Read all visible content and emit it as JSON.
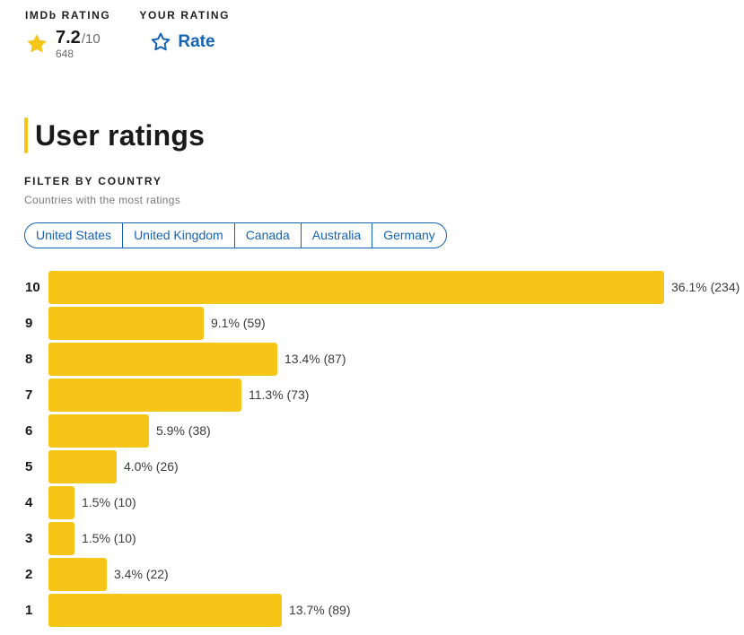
{
  "imdb_rating": {
    "label": "IMDb RATING",
    "score": "7.2",
    "max": "/10",
    "votes": "648",
    "icon": "star-filled-icon"
  },
  "your_rating": {
    "label": "YOUR RATING",
    "rate_label": "Rate",
    "icon": "star-outline-icon"
  },
  "section": {
    "title": "User ratings"
  },
  "filter": {
    "label": "FILTER BY COUNTRY",
    "subtitle": "Countries with the most ratings",
    "countries": [
      "United States",
      "United Kingdom",
      "Canada",
      "Australia",
      "Germany"
    ]
  },
  "colors": {
    "accent": "#f5c518",
    "link": "#1463b4"
  },
  "chart_data": {
    "type": "bar",
    "orientation": "horizontal",
    "categories": [
      "10",
      "9",
      "8",
      "7",
      "6",
      "5",
      "4",
      "3",
      "2",
      "1"
    ],
    "values": [
      36.1,
      9.1,
      13.4,
      11.3,
      5.9,
      4.0,
      1.5,
      1.5,
      3.4,
      13.7
    ],
    "counts": [
      234,
      59,
      87,
      73,
      38,
      26,
      10,
      10,
      22,
      89
    ],
    "labels": [
      "36.1% (234)",
      "9.1% (59)",
      "13.4% (87)",
      "11.3% (73)",
      "5.9% (38)",
      "4.0% (26)",
      "1.5% (10)",
      "1.5% (10)",
      "3.4% (22)",
      "13.7% (89)"
    ]
  }
}
